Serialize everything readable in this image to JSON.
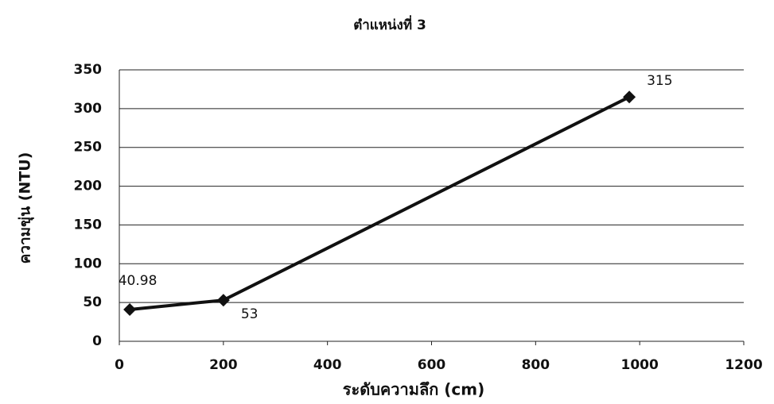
{
  "chart_data": {
    "type": "line",
    "title": "ตำแหน่งที่ 3",
    "x_label": "ระดับความลึก (cm)",
    "y_label": "ความขุ่น (NTU)",
    "x": [
      20,
      200,
      980
    ],
    "series": [
      {
        "name": "ความขุ่น",
        "color": "#111111",
        "values": [
          40.98,
          53,
          315
        ]
      }
    ],
    "xlim": [
      0,
      1200
    ],
    "xticks": [
      0,
      200,
      400,
      600,
      800,
      1000,
      1200
    ],
    "ylim": [
      0,
      350
    ],
    "yticks": [
      0,
      50,
      100,
      150,
      200,
      250,
      300,
      350
    ],
    "grid": true
  }
}
